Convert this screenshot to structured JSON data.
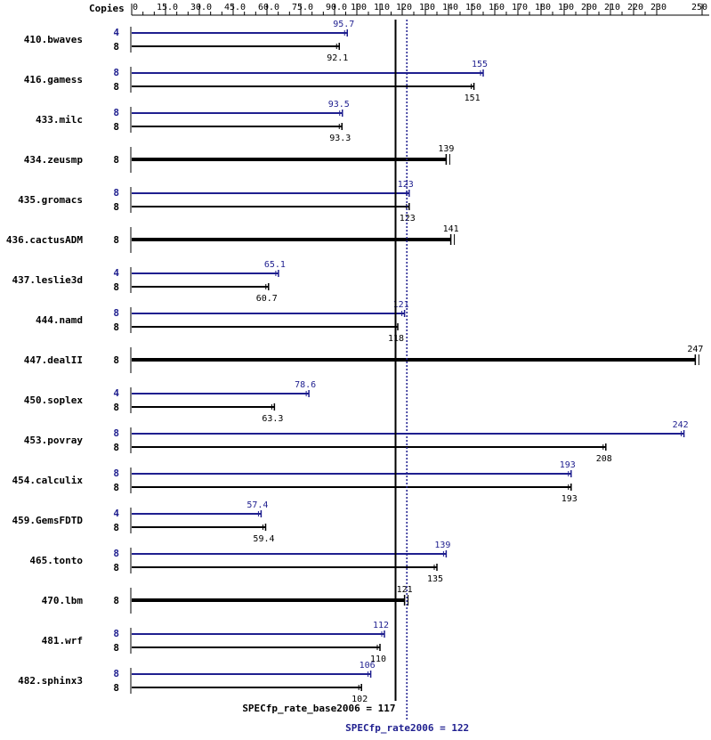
{
  "chart_data": {
    "type": "bar",
    "header": "Copies",
    "ticks": [
      0,
      15.0,
      30.0,
      45.0,
      60.0,
      75.0,
      90.0,
      100,
      110,
      120,
      130,
      140,
      150,
      160,
      170,
      180,
      190,
      200,
      210,
      220,
      230,
      250
    ],
    "tick_labels": [
      "0",
      "15.0",
      "30.0",
      "45.0",
      "60.0",
      "75.0",
      "90.0",
      "100",
      "110",
      "120",
      "130",
      "140",
      "150",
      "160",
      "170",
      "180",
      "190",
      "200",
      "210",
      "220",
      "230",
      "250"
    ],
    "base_reference": {
      "label": "SPECfp_rate_base2006 = 117",
      "value": 117
    },
    "peak_reference": {
      "label": "SPECfp_rate2006 = 122",
      "value": 122
    },
    "colors": {
      "base": "#000000",
      "peak": "#1f1f8f"
    },
    "benchmarks": [
      {
        "name": "410.bwaves",
        "peak": {
          "copies": "4",
          "value": 95.7,
          "label": "95.7"
        },
        "base": {
          "copies": "8",
          "value": 92.1,
          "label": "92.1"
        }
      },
      {
        "name": "416.gamess",
        "peak": {
          "copies": "8",
          "value": 155,
          "label": "155"
        },
        "base": {
          "copies": "8",
          "value": 151,
          "label": "151"
        }
      },
      {
        "name": "433.milc",
        "peak": {
          "copies": "8",
          "value": 93.5,
          "label": "93.5"
        },
        "base": {
          "copies": "8",
          "value": 93.3,
          "label": "93.3"
        }
      },
      {
        "name": "434.zeusmp",
        "combined": true,
        "base": {
          "copies": "8",
          "value": 139,
          "label": "139"
        }
      },
      {
        "name": "435.gromacs",
        "peak": {
          "copies": "8",
          "value": 123,
          "label": "123"
        },
        "base": {
          "copies": "8",
          "value": 123,
          "label": "123"
        }
      },
      {
        "name": "436.cactusADM",
        "combined": true,
        "base": {
          "copies": "8",
          "value": 141,
          "label": "141"
        }
      },
      {
        "name": "437.leslie3d",
        "peak": {
          "copies": "4",
          "value": 65.1,
          "label": "65.1"
        },
        "base": {
          "copies": "8",
          "value": 60.7,
          "label": "60.7"
        }
      },
      {
        "name": "444.namd",
        "peak": {
          "copies": "8",
          "value": 121,
          "label": "121"
        },
        "base": {
          "copies": "8",
          "value": 118,
          "label": "118"
        }
      },
      {
        "name": "447.dealII",
        "combined": true,
        "base": {
          "copies": "8",
          "value": 247,
          "label": "247"
        }
      },
      {
        "name": "450.soplex",
        "peak": {
          "copies": "4",
          "value": 78.6,
          "label": "78.6"
        },
        "base": {
          "copies": "8",
          "value": 63.3,
          "label": "63.3"
        }
      },
      {
        "name": "453.povray",
        "peak": {
          "copies": "8",
          "value": 242,
          "label": "242"
        },
        "base": {
          "copies": "8",
          "value": 208,
          "label": "208"
        }
      },
      {
        "name": "454.calculix",
        "peak": {
          "copies": "8",
          "value": 193,
          "label": "193"
        },
        "base": {
          "copies": "8",
          "value": 193,
          "label": "193"
        }
      },
      {
        "name": "459.GemsFDTD",
        "peak": {
          "copies": "4",
          "value": 57.4,
          "label": "57.4"
        },
        "base": {
          "copies": "8",
          "value": 59.4,
          "label": "59.4"
        }
      },
      {
        "name": "465.tonto",
        "peak": {
          "copies": "8",
          "value": 139,
          "label": "139"
        },
        "base": {
          "copies": "8",
          "value": 135,
          "label": "135"
        }
      },
      {
        "name": "470.lbm",
        "combined": true,
        "base": {
          "copies": "8",
          "value": 121,
          "label": "121"
        }
      },
      {
        "name": "481.wrf",
        "peak": {
          "copies": "8",
          "value": 112,
          "label": "112"
        },
        "base": {
          "copies": "8",
          "value": 110,
          "label": "110"
        }
      },
      {
        "name": "482.sphinx3",
        "peak": {
          "copies": "8",
          "value": 106,
          "label": "106"
        },
        "base": {
          "copies": "8",
          "value": 102,
          "label": "102"
        }
      }
    ]
  }
}
